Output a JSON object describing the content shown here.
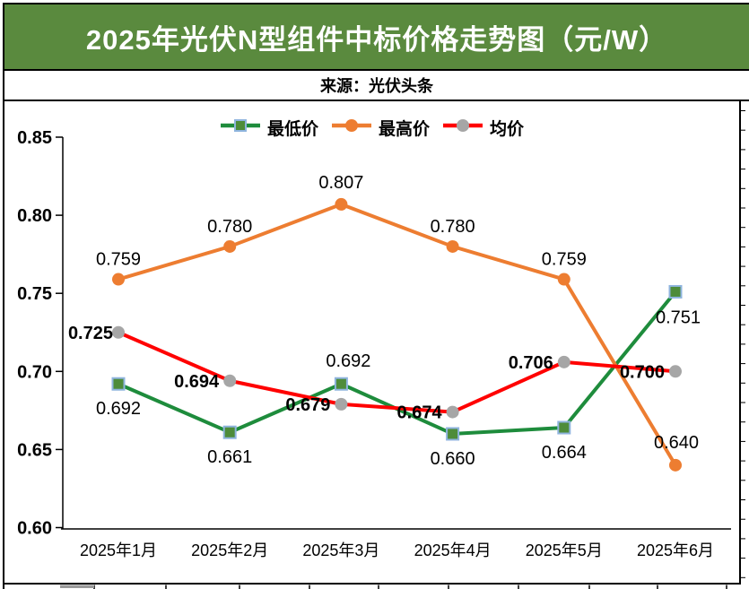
{
  "header": {
    "title": "2025年光伏N型组件中标价格走势图（元/W）"
  },
  "source_bar": {
    "text": "来源：光伏头条"
  },
  "colors": {
    "header_bg": "#5a8a3e",
    "header_text": "#ffffff",
    "border": "#000000",
    "min_line": "#1e8c3c",
    "max_line": "#ed7d31",
    "avg_line": "#ff0000",
    "avg_marker": "#a6a6a6",
    "min_marker_fill": "#4e8c3a",
    "min_marker_stroke": "#8fb4de"
  },
  "chart_data": {
    "type": "line",
    "title": "2025年光伏N型组件中标价格走势图（元/W）",
    "source": "来源：光伏头条",
    "categories": [
      "2025年1月",
      "2025年2月",
      "2025年3月",
      "2025年4月",
      "2025年5月",
      "2025年6月"
    ],
    "series": [
      {
        "name": "最低价",
        "color": "#1e8c3c",
        "marker": "square",
        "marker_fill": "#4e8c3a",
        "marker_stroke": "#8fb4de",
        "values": [
          0.692,
          0.661,
          0.692,
          0.66,
          0.664,
          0.751
        ],
        "labels_bold": false
      },
      {
        "name": "最高价",
        "color": "#ed7d31",
        "marker": "circle",
        "marker_fill": "#ed7d31",
        "marker_stroke": "none",
        "values": [
          0.759,
          0.78,
          0.807,
          0.78,
          0.759,
          0.64
        ],
        "labels_bold": false
      },
      {
        "name": "均价",
        "color": "#ff0000",
        "marker": "circle",
        "marker_fill": "#a6a6a6",
        "marker_stroke": "none",
        "values": [
          0.725,
          0.694,
          0.679,
          0.674,
          0.706,
          0.7
        ],
        "labels_bold": true
      }
    ],
    "ylim": [
      0.6,
      0.85
    ],
    "yticks": [
      0.85,
      0.8,
      0.75,
      0.7,
      0.65,
      0.6
    ],
    "ytick_decimals": 2,
    "value_label_decimals": 3,
    "grid": false,
    "legend_position": "top"
  }
}
